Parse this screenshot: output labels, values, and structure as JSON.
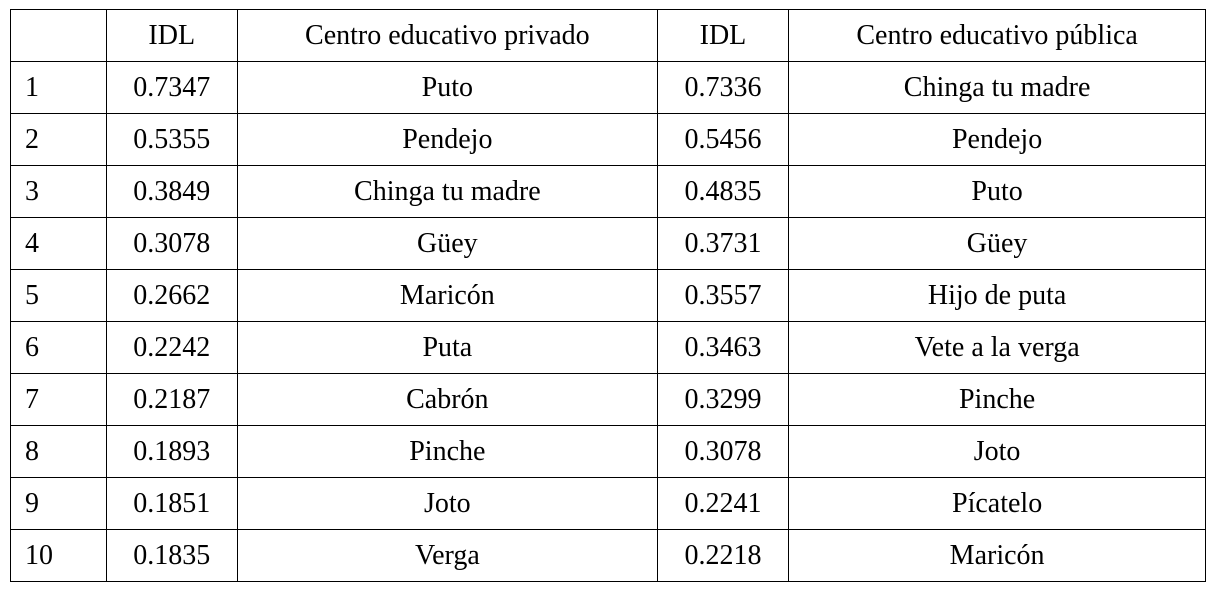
{
  "header": {
    "rank": "",
    "idl_private": "IDL",
    "word_private": "Centro educativo privado",
    "idl_public": "IDL",
    "word_public": "Centro educativo pública"
  },
  "rows": [
    {
      "rank": "1",
      "idl_private": "0.7347",
      "word_private": "Puto",
      "idl_public": "0.7336",
      "word_public": "Chinga tu madre"
    },
    {
      "rank": "2",
      "idl_private": "0.5355",
      "word_private": "Pendejo",
      "idl_public": "0.5456",
      "word_public": "Pendejo"
    },
    {
      "rank": "3",
      "idl_private": "0.3849",
      "word_private": "Chinga tu madre",
      "idl_public": "0.4835",
      "word_public": "Puto"
    },
    {
      "rank": "4",
      "idl_private": "0.3078",
      "word_private": "Güey",
      "idl_public": "0.3731",
      "word_public": "Güey"
    },
    {
      "rank": "5",
      "idl_private": "0.2662",
      "word_private": "Maricón",
      "idl_public": "0.3557",
      "word_public": "Hijo de puta"
    },
    {
      "rank": "6",
      "idl_private": "0.2242",
      "word_private": "Puta",
      "idl_public": "0.3463",
      "word_public": "Vete a la verga"
    },
    {
      "rank": "7",
      "idl_private": "0.2187",
      "word_private": "Cabrón",
      "idl_public": "0.3299",
      "word_public": "Pinche"
    },
    {
      "rank": "8",
      "idl_private": "0.1893",
      "word_private": "Pinche",
      "idl_public": "0.3078",
      "word_public": "Joto"
    },
    {
      "rank": "9",
      "idl_private": "0.1851",
      "word_private": "Joto",
      "idl_public": "0.2241",
      "word_public": "Pícatelo"
    },
    {
      "rank": "10",
      "idl_private": "0.1835",
      "word_private": "Verga",
      "idl_public": "0.2218",
      "word_public": "Maricón"
    }
  ]
}
